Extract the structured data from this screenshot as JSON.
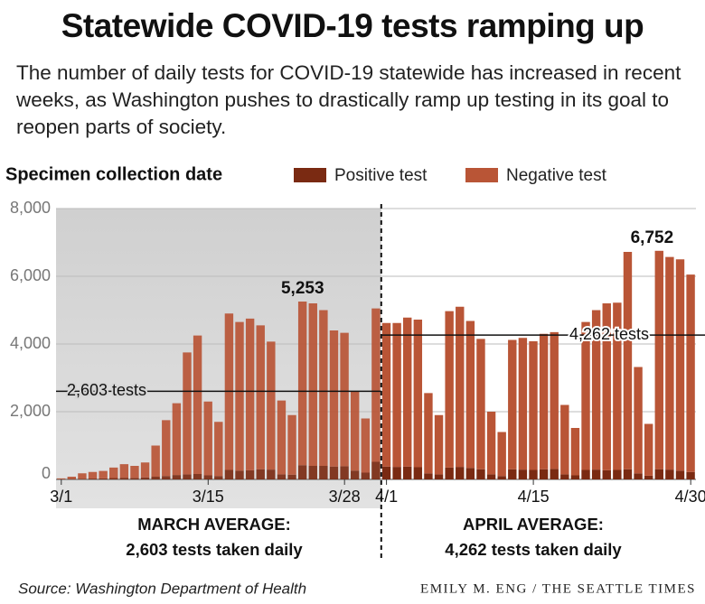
{
  "chart_data": {
    "type": "stacked_bar",
    "title": "Statewide COVID-19 tests ramping up",
    "subtitle": "The number of daily tests for COVID-19 statewide has increased in recent weeks, as Washington pushes to drastically ramp up testing in its goal to reopen parts of society.",
    "x_label": "Specimen collection date",
    "categories": [
      "3/1",
      null,
      null,
      null,
      null,
      null,
      null,
      null,
      null,
      null,
      null,
      null,
      null,
      null,
      "3/15",
      null,
      null,
      null,
      null,
      null,
      null,
      null,
      null,
      null,
      null,
      null,
      null,
      "3/28",
      null,
      null,
      null,
      "4/1",
      null,
      null,
      null,
      null,
      null,
      null,
      null,
      null,
      null,
      null,
      null,
      null,
      null,
      "4/15",
      null,
      null,
      null,
      null,
      null,
      null,
      null,
      null,
      null,
      null,
      null,
      null,
      null,
      null,
      "4/30"
    ],
    "series": [
      {
        "name": "Positive test",
        "color": "#7a2a12",
        "values": [
          5,
          10,
          20,
          25,
          30,
          40,
          50,
          45,
          60,
          80,
          100,
          130,
          150,
          160,
          120,
          100,
          280,
          260,
          270,
          300,
          290,
          150,
          140,
          420,
          400,
          400,
          380,
          390,
          260,
          200,
          520,
          380,
          370,
          380,
          360,
          180,
          150,
          350,
          370,
          340,
          300,
          150,
          100,
          300,
          290,
          280,
          300,
          310,
          150,
          120,
          280,
          290,
          270,
          280,
          300,
          180,
          110,
          302,
          290,
          260,
          220
        ]
      },
      {
        "name": "Negative test",
        "color": "#b95536",
        "values": [
          25,
          70,
          160,
          195,
          220,
          310,
          400,
          355,
          440,
          920,
          1650,
          2120,
          3600,
          4090,
          2180,
          1600,
          4620,
          4390,
          4480,
          4250,
          3780,
          2180,
          1760,
          4833,
          4800,
          4600,
          4020,
          3940,
          2340,
          1600,
          4530,
          4240,
          4250,
          4400,
          4360,
          2370,
          1750,
          4620,
          4730,
          4340,
          3850,
          1850,
          1300,
          3820,
          3890,
          3800,
          4000,
          4040,
          2050,
          1400,
          4370,
          4710,
          4930,
          4940,
          6420,
          3140,
          1530,
          6450,
          6280,
          6240,
          5830
        ]
      }
    ],
    "ylim": [
      0,
      8000
    ],
    "yticks": [
      0,
      {
        "value": 2000,
        "label": "2,000"
      },
      {
        "value": 4000,
        "label": "4,000"
      },
      {
        "value": 6000,
        "label": "6,000"
      },
      {
        "value": 8000,
        "label": "8,000"
      }
    ],
    "grid": true,
    "annotations": [
      {
        "text": "5,253",
        "value": 5253
      },
      {
        "text": "6,752",
        "value": 6752
      }
    ],
    "averages": [
      {
        "value": 2603,
        "label": "2,603 tests"
      },
      {
        "value": 4262,
        "label": "4,262 tests"
      }
    ],
    "periods": [
      {
        "heading": "MARCH AVERAGE:",
        "text": "2,603 tests taken daily"
      },
      {
        "heading": "APRIL AVERAGE:",
        "text": "4,262 tests taken daily"
      }
    ],
    "source": "Source: Washington Department of Health",
    "credit": "EMILY M. ENG / THE SEATTLE TIMES"
  }
}
